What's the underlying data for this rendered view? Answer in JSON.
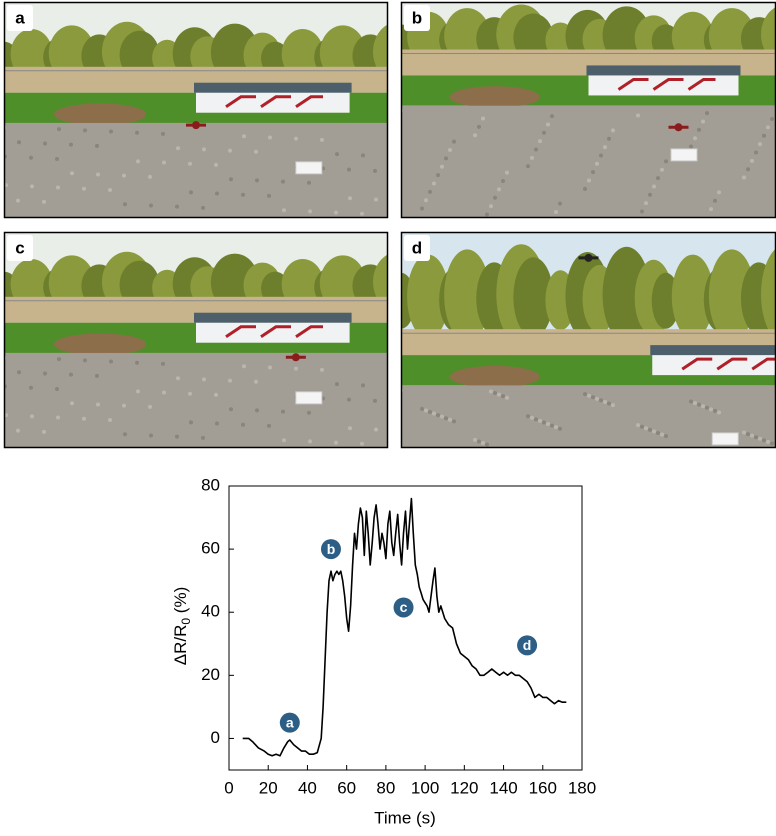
{
  "panels": [
    {
      "label": "a"
    },
    {
      "label": "b"
    },
    {
      "label": "c"
    },
    {
      "label": "d"
    }
  ],
  "chart_data": {
    "type": "line",
    "x_label": "Time (s)",
    "y_label": [
      "ΔR/R",
      "0",
      " (%)"
    ],
    "xlim": [
      0,
      180
    ],
    "xticks": [
      0,
      20,
      40,
      60,
      80,
      100,
      120,
      140,
      160,
      180
    ],
    "ylim": [
      -10,
      80
    ],
    "yticks": [
      0,
      20,
      40,
      60,
      80
    ],
    "color": "#000000",
    "x": [
      7,
      10,
      12,
      15,
      18,
      20,
      22,
      24,
      26,
      28,
      30,
      31,
      33,
      35,
      37,
      39,
      41,
      43,
      45,
      47,
      48,
      49,
      50,
      51,
      52,
      53,
      54,
      55,
      56,
      57,
      58,
      59,
      60,
      61,
      62,
      63,
      64,
      65,
      66,
      67,
      68,
      69,
      70,
      71,
      72,
      73,
      74,
      75,
      76,
      77,
      78,
      79,
      80,
      81,
      82,
      83,
      84,
      85,
      86,
      87,
      88,
      89,
      90,
      91,
      92,
      93,
      94,
      95,
      96,
      97,
      98,
      99,
      100,
      101,
      102,
      103,
      104,
      105,
      106,
      107,
      108,
      110,
      112,
      114,
      116,
      118,
      120,
      122,
      124,
      126,
      128,
      130,
      132,
      134,
      136,
      138,
      140,
      142,
      144,
      146,
      148,
      150,
      152,
      154,
      156,
      158,
      160,
      162,
      164,
      166,
      168,
      170,
      172
    ],
    "values": [
      0,
      0,
      -1,
      -3,
      -4,
      -5,
      -5.5,
      -5,
      -5.5,
      -3,
      -1,
      -0.5,
      -2,
      -3,
      -4,
      -4,
      -5,
      -5,
      -4.5,
      0,
      10,
      25,
      40,
      50,
      53,
      50,
      52,
      53,
      52,
      53,
      50,
      45,
      38,
      34,
      42,
      55,
      65,
      60,
      68,
      73,
      70,
      58,
      72,
      65,
      55,
      62,
      70,
      74,
      68,
      60,
      65,
      62,
      57,
      68,
      72,
      62,
      58,
      65,
      71,
      62,
      55,
      65,
      72,
      60,
      68,
      76,
      65,
      55,
      52,
      48,
      46,
      44,
      43,
      42,
      40,
      45,
      50,
      54,
      45,
      40,
      42,
      38,
      36,
      35,
      30,
      27,
      26,
      25,
      23,
      22,
      20,
      20,
      21,
      22,
      21,
      20,
      21,
      20,
      21,
      20,
      20,
      19,
      18,
      16,
      13,
      14,
      13,
      13,
      12,
      11,
      12,
      11.5,
      11.5
    ],
    "annotations": [
      {
        "label": "a",
        "x": 31,
        "y": 5
      },
      {
        "label": "b",
        "x": 52,
        "y": 60
      },
      {
        "label": "c",
        "x": 89,
        "y": 41.5
      },
      {
        "label": "d",
        "x": 152,
        "y": 29.5
      }
    ],
    "annotation_color": "#2d5f86"
  }
}
